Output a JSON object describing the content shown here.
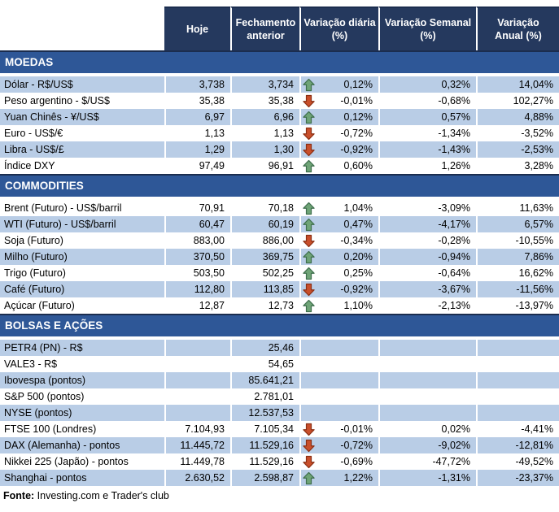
{
  "colors": {
    "header_bg": "#25395E",
    "band_bg": "#2E5797",
    "band_border": "#1B2D4F",
    "row_shaded": "#B9CDE6",
    "up_fill": "#6FA477",
    "up_stroke": "#3F6F4D",
    "down_fill": "#C94F2B",
    "down_stroke": "#8C3014"
  },
  "chart_data": {
    "type": "table",
    "title": "",
    "columns": [
      "Hoje",
      "Fechamento\nanterior",
      "Variação diária\n(%)",
      "Variação Semanal\n(%)",
      "Variação\nAnual (%)"
    ],
    "sections": [
      {
        "title": "MOEDAS",
        "first_shaded": true,
        "rows": [
          {
            "label": "Dólar - R$/US$",
            "today": "3,738",
            "prev": "3,734",
            "arrow": "up",
            "daily": "0,12%",
            "weekly": "0,32%",
            "annual": "14,04%"
          },
          {
            "label": "Peso argentino - $/US$",
            "today": "35,38",
            "prev": "35,38",
            "arrow": "down",
            "daily": "-0,01%",
            "weekly": "-0,68%",
            "annual": "102,27%"
          },
          {
            "label": "Yuan Chinês - ¥/US$",
            "today": "6,97",
            "prev": "6,96",
            "arrow": "up",
            "daily": "0,12%",
            "weekly": "0,57%",
            "annual": "4,88%"
          },
          {
            "label": "Euro - US$/€",
            "today": "1,13",
            "prev": "1,13",
            "arrow": "down",
            "daily": "-0,72%",
            "weekly": "-1,34%",
            "annual": "-3,52%"
          },
          {
            "label": "Libra - US$/£",
            "today": "1,29",
            "prev": "1,30",
            "arrow": "down",
            "daily": "-0,92%",
            "weekly": "-1,43%",
            "annual": "-2,53%"
          },
          {
            "label": "Índice DXY",
            "today": "97,49",
            "prev": "96,91",
            "arrow": "up",
            "daily": "0,60%",
            "weekly": "1,26%",
            "annual": "3,28%"
          }
        ]
      },
      {
        "title": "COMMODITIES",
        "first_shaded": false,
        "rows": [
          {
            "label": "Brent (Futuro) - US$/barril",
            "today": "70,91",
            "prev": "70,18",
            "arrow": "up",
            "daily": "1,04%",
            "weekly": "-3,09%",
            "annual": "11,63%"
          },
          {
            "label": "WTI (Futuro) - US$/barril",
            "today": "60,47",
            "prev": "60,19",
            "arrow": "up",
            "daily": "0,47%",
            "weekly": "-4,17%",
            "annual": "6,57%"
          },
          {
            "label": "Soja (Futuro)",
            "today": "883,00",
            "prev": "886,00",
            "arrow": "down",
            "daily": "-0,34%",
            "weekly": "-0,28%",
            "annual": "-10,55%"
          },
          {
            "label": "Milho (Futuro)",
            "today": "370,50",
            "prev": "369,75",
            "arrow": "up",
            "daily": "0,20%",
            "weekly": "-0,94%",
            "annual": "7,86%"
          },
          {
            "label": "Trigo (Futuro)",
            "today": "503,50",
            "prev": "502,25",
            "arrow": "up",
            "daily": "0,25%",
            "weekly": "-0,64%",
            "annual": "16,62%"
          },
          {
            "label": "Café (Futuro)",
            "today": "112,80",
            "prev": "113,85",
            "arrow": "down",
            "daily": "-0,92%",
            "weekly": "-3,67%",
            "annual": "-11,56%"
          },
          {
            "label": "Açúcar (Futuro)",
            "today": "12,87",
            "prev": "12,73",
            "arrow": "up",
            "daily": "1,10%",
            "weekly": "-2,13%",
            "annual": "-13,97%"
          }
        ]
      },
      {
        "title": "BOLSAS E AÇÕES",
        "first_shaded": true,
        "rows": [
          {
            "label": "PETR4 (PN) - R$",
            "today": "",
            "prev": "25,46",
            "arrow": "",
            "daily": "",
            "weekly": "",
            "annual": ""
          },
          {
            "label": "VALE3 - R$",
            "today": "",
            "prev": "54,65",
            "arrow": "",
            "daily": "",
            "weekly": "",
            "annual": ""
          },
          {
            "label": "Ibovespa (pontos)",
            "today": "",
            "prev": "85.641,21",
            "arrow": "",
            "daily": "",
            "weekly": "",
            "annual": ""
          },
          {
            "label": "S&P 500 (pontos)",
            "today": "",
            "prev": "2.781,01",
            "arrow": "",
            "daily": "",
            "weekly": "",
            "annual": ""
          },
          {
            "label": "NYSE (pontos)",
            "today": "",
            "prev": "12.537,53",
            "arrow": "",
            "daily": "",
            "weekly": "",
            "annual": ""
          },
          {
            "label": "FTSE 100 (Londres)",
            "today": "7.104,93",
            "prev": "7.105,34",
            "arrow": "down",
            "daily": "-0,01%",
            "weekly": "0,02%",
            "annual": "-4,41%"
          },
          {
            "label": "DAX (Alemanha) - pontos",
            "today": "11.445,72",
            "prev": "11.529,16",
            "arrow": "down",
            "daily": "-0,72%",
            "weekly": "-9,02%",
            "annual": "-12,81%"
          },
          {
            "label": "Nikkei 225 (Japão) - pontos",
            "today": "11.449,78",
            "prev": "11.529,16",
            "arrow": "down",
            "daily": "-0,69%",
            "weekly": "-47,72%",
            "annual": "-49,52%"
          },
          {
            "label": "Shanghai - pontos",
            "today": "2.630,52",
            "prev": "2.598,87",
            "arrow": "up",
            "daily": "1,22%",
            "weekly": "-1,31%",
            "annual": "-23,37%"
          }
        ]
      }
    ],
    "footer": {
      "label": "Fonte:",
      "text": " Investing.com e Trader's club"
    }
  }
}
